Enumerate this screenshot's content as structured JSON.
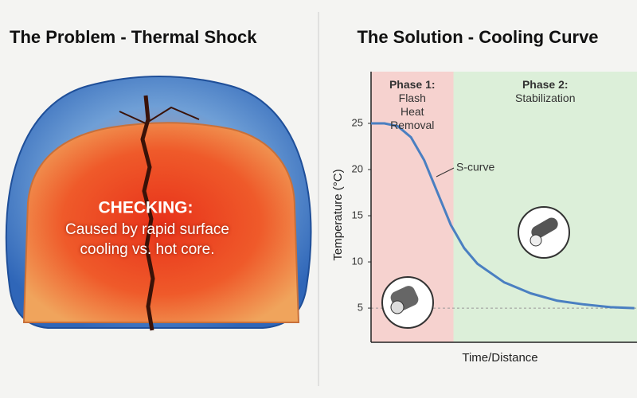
{
  "left_panel": {
    "title": "The Problem - Thermal Shock",
    "heading": "CHECKING:",
    "caption": "Caused by rapid surface cooling vs. hot core."
  },
  "chart_data": {
    "type": "line",
    "title": "The Solution - Cooling Curve",
    "x_label": "Time/Distance",
    "y_label": "Temperature (°C)",
    "xlim": [
      0,
      100
    ],
    "ylim": [
      1.3,
      30.6
    ],
    "yticks": [
      5,
      10,
      15,
      20,
      25
    ],
    "x": [
      0,
      5,
      10,
      15,
      20,
      25,
      30,
      35,
      40,
      50,
      60,
      70,
      80,
      90,
      99
    ],
    "series": [
      {
        "name": "Cooling curve",
        "color": "#4a7fc1",
        "values": [
          25,
          25,
          24.7,
          23.5,
          21,
          17.5,
          14,
          11.5,
          9.8,
          7.8,
          6.6,
          5.8,
          5.4,
          5.1,
          5.0
        ]
      }
    ],
    "reference_y": 5,
    "annotation": "S-curve",
    "phases": [
      {
        "label": "Phase 1:",
        "description": "Flash Heat Removal",
        "x_range": [
          0,
          31
        ],
        "color": "#f6d2cf"
      },
      {
        "label": "Phase 2:",
        "description": "Stabilization",
        "x_range": [
          31,
          100
        ],
        "color": "#dcefd9"
      }
    ]
  }
}
